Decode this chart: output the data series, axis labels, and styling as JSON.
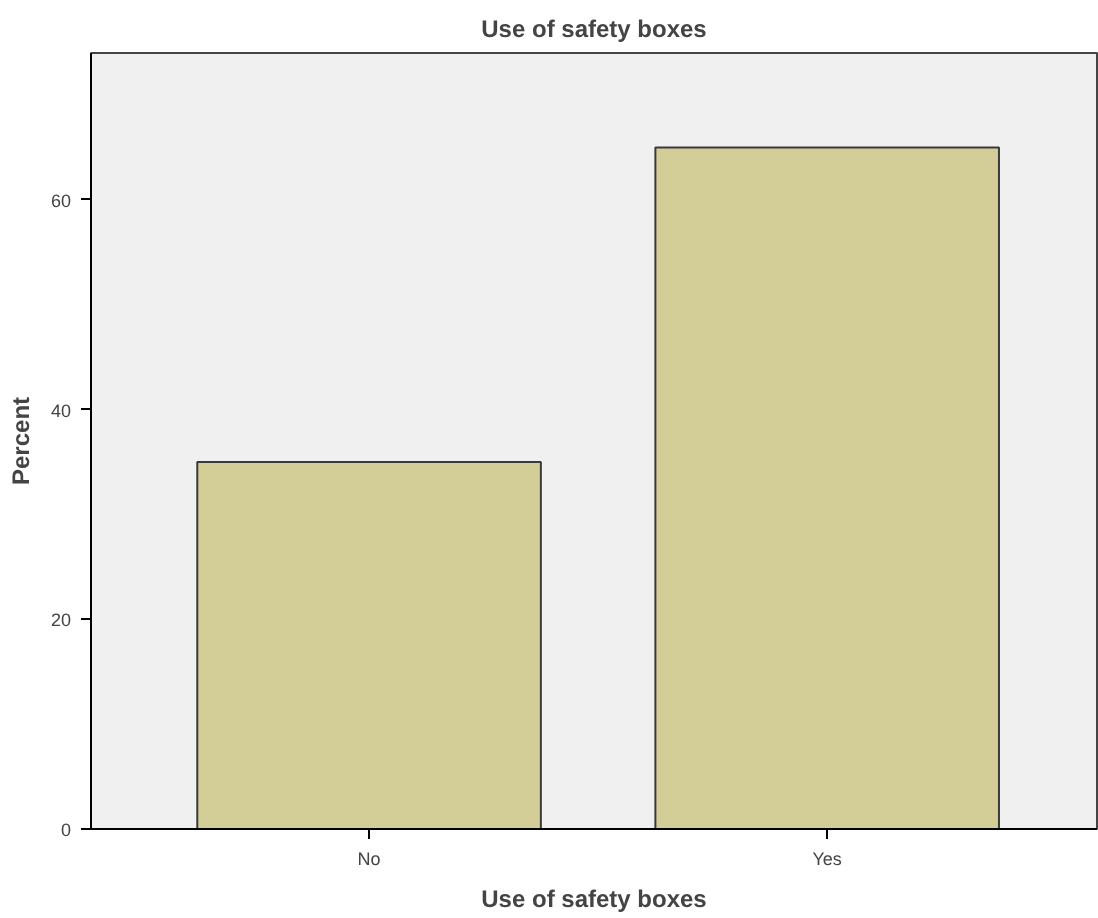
{
  "chart_data": {
    "type": "bar",
    "title": "Use of safety boxes",
    "xlabel": "Use of safety boxes",
    "ylabel": "Percent",
    "categories": [
      "No",
      "Yes"
    ],
    "values": [
      35,
      65
    ],
    "color": "#d3ce97",
    "ylim": [
      0,
      74
    ],
    "yticks": [
      0,
      20,
      40,
      60
    ],
    "grid": false
  }
}
